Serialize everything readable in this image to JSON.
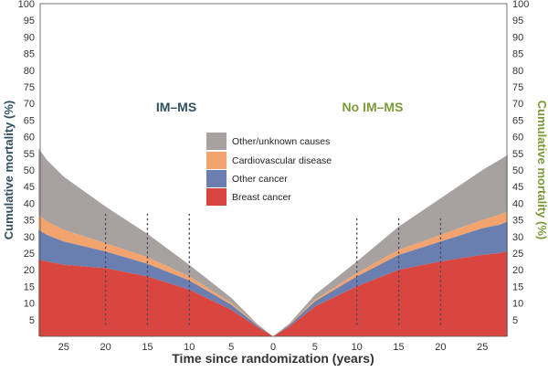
{
  "chart_data": {
    "type": "area",
    "xlabel": "Time since randomization (years)",
    "ylabel_left": "Cumulative mortality (%)",
    "ylabel_right": "Cumulative mortality (%)",
    "ylim": [
      0,
      100
    ],
    "y_ticks": [
      5,
      10,
      15,
      20,
      25,
      30,
      35,
      40,
      45,
      50,
      55,
      60,
      65,
      70,
      75,
      80,
      85,
      90,
      95,
      100
    ],
    "x_ticks_left": [
      25,
      20,
      15,
      10,
      5,
      0
    ],
    "x_ticks_right": [
      5,
      10,
      15,
      20,
      25
    ],
    "xlim_years": [
      0,
      28
    ],
    "grid": false,
    "legend_position": "center",
    "colors": {
      "left_axis": "#2f4f5f",
      "right_axis": "#7a9a3a",
      "breast": "#d9463f",
      "other_cancer": "#6a7fb0",
      "cardio": "#f2a36e",
      "other_unknown": "#a7a29f",
      "dotted": "#4a4a6a"
    },
    "legend": [
      {
        "label": "Other/unknown causes",
        "color": "#a7a29f"
      },
      {
        "label": "Cardiovascular disease",
        "color": "#f2a36e"
      },
      {
        "label": "Other cancer",
        "color": "#6a7fb0"
      },
      {
        "label": "Breast cancer",
        "color": "#d9463f"
      }
    ],
    "panels": [
      {
        "title": "IM–MS",
        "side": "left",
        "x": [
          0,
          2,
          5,
          10,
          15,
          20,
          25,
          27,
          28
        ],
        "series": [
          {
            "name": "Breast cancer",
            "values": [
              0,
              3,
              8,
              14,
              18,
              20.5,
              21.5,
              22.5,
              23
            ]
          },
          {
            "name": "Other cancer",
            "values": [
              0,
              0.5,
              1.5,
              2.8,
              3.8,
              5,
              7,
              8,
              9
            ]
          },
          {
            "name": "Cardiovascular disease",
            "values": [
              0,
              0.2,
              0.6,
              1.2,
              2,
              2.5,
              3.5,
              4,
              4.5
            ]
          },
          {
            "name": "Other/unknown causes",
            "values": [
              0,
              0.3,
              1.5,
              3.5,
              7,
              11,
              16,
              18.5,
              20
            ]
          }
        ]
      },
      {
        "title": "No IM–MS",
        "side": "right",
        "x": [
          0,
          2,
          5,
          10,
          15,
          20,
          25,
          27,
          28
        ],
        "series": [
          {
            "name": "Breast cancer",
            "values": [
              0,
              3,
              9,
              15,
              20,
              22.5,
              24.5,
              25,
              25.5
            ]
          },
          {
            "name": "Other cancer",
            "values": [
              0,
              0.5,
              1.5,
              3,
              4.5,
              6,
              8,
              8.5,
              9
            ]
          },
          {
            "name": "Cardiovascular disease",
            "values": [
              0,
              0.2,
              0.5,
              1,
              1.5,
              2,
              2.5,
              3,
              3
            ]
          },
          {
            "name": "Other/unknown causes",
            "values": [
              0,
              0.3,
              1.5,
              3.5,
              7,
              11,
              15,
              16.5,
              17
            ]
          }
        ]
      }
    ],
    "reference_years": [
      10,
      15,
      20
    ]
  }
}
